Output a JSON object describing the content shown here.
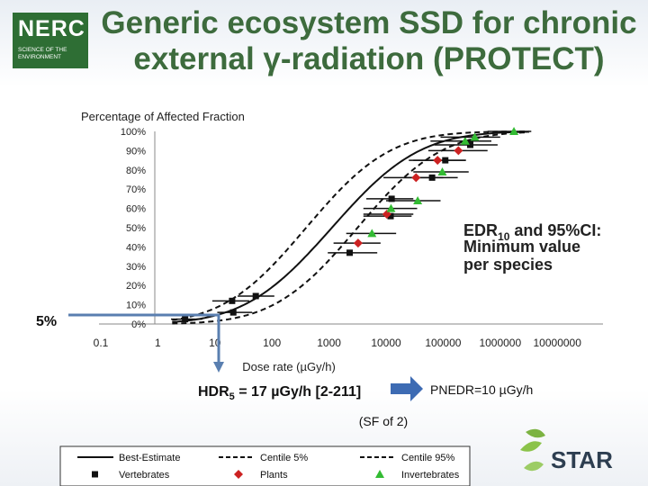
{
  "logo": {
    "text": "NERC",
    "subtitle": "SCIENCE OF THE ENVIRONMENT"
  },
  "slide_title": {
    "line1": "Generic ecosystem SSD for chronic",
    "line2": "external γ-radiation (PROTECT)"
  },
  "chart_data": {
    "type": "scatter",
    "ylabel": "Percentage of Affected Fraction",
    "xlabel": "Dose rate (µGy/h)",
    "x_scale": "log",
    "xlim": [
      0.1,
      10000000
    ],
    "ylim": [
      0,
      1
    ],
    "x_ticks": [
      "0.1",
      "1",
      "10",
      "100",
      "1000",
      "10000",
      "100000",
      "1000000",
      "10000000"
    ],
    "y_ticks": [
      "0%",
      "10%",
      "20%",
      "30%",
      "40%",
      "50%",
      "60%",
      "70%",
      "80%",
      "90%",
      "100%"
    ],
    "series": [
      {
        "name": "Vertebrates",
        "color": "#111111",
        "marker": "square",
        "points": [
          [
            3,
            0.025
          ],
          [
            21,
            0.06
          ],
          [
            20,
            0.12
          ],
          [
            52,
            0.145
          ],
          [
            2300,
            0.37
          ],
          [
            12000,
            0.56
          ],
          [
            12500,
            0.65
          ],
          [
            64000,
            0.76
          ],
          [
            109000,
            0.85
          ],
          [
            298000,
            0.93
          ]
        ]
      },
      {
        "name": "Plants",
        "color": "#cc2222",
        "marker": "diamond",
        "points": [
          [
            3230,
            0.42
          ],
          [
            10300,
            0.57
          ],
          [
            33500,
            0.76
          ],
          [
            79800,
            0.85
          ],
          [
            185000,
            0.9
          ]
        ]
      },
      {
        "name": "Invertebrates",
        "color": "#33bb33",
        "marker": "triangle",
        "points": [
          [
            5650,
            0.47
          ],
          [
            12200,
            0.6
          ],
          [
            35800,
            0.64
          ],
          [
            96700,
            0.79
          ],
          [
            243000,
            0.95
          ],
          [
            358000,
            0.97
          ],
          [
            1740000,
            1.0
          ]
        ]
      },
      {
        "name": "Best-Estimate",
        "style": "solid"
      },
      {
        "name": "Centile 5%",
        "style": "dashed"
      },
      {
        "name": "Centile 95%",
        "style": "dashed"
      }
    ],
    "annotations": {
      "edr": "EDR10 and 95%CI: Minimum value per species",
      "hdr": "HDR5 = 17 µGy/h [2-211]",
      "pnedr": "PNEDR=10 µGy/h",
      "sf": "(SF of 2)",
      "five_pct": "5%"
    }
  },
  "star_logo": {
    "text": "STAR"
  }
}
